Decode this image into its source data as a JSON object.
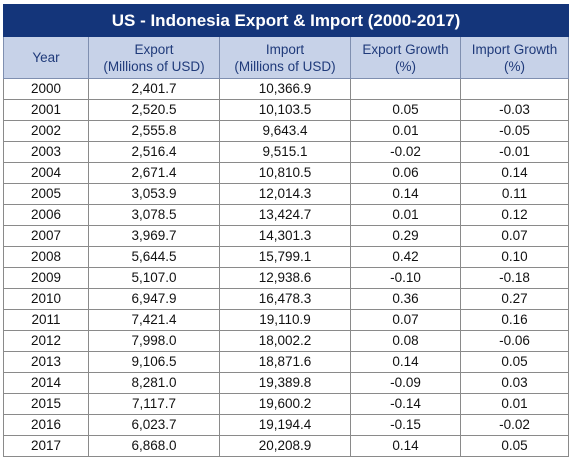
{
  "title": "US - Indonesia Export & Import (2000-2017)",
  "headers": {
    "year": "Year",
    "export_line1": "Export",
    "export_line2": "(Millions of USD)",
    "import_line1": "Import",
    "import_line2": "(Millions of USD)",
    "export_growth_line1": "Export Growth",
    "export_growth_line2": "(%)",
    "import_growth_line1": "Import Growth",
    "import_growth_line2": "(%)"
  },
  "rows": [
    {
      "year": "2000",
      "export": "2,401.7",
      "import": "10,366.9",
      "export_growth": "",
      "import_growth": ""
    },
    {
      "year": "2001",
      "export": "2,520.5",
      "import": "10,103.5",
      "export_growth": "0.05",
      "import_growth": "-0.03"
    },
    {
      "year": "2002",
      "export": "2,555.8",
      "import": "9,643.4",
      "export_growth": "0.01",
      "import_growth": "-0.05"
    },
    {
      "year": "2003",
      "export": "2,516.4",
      "import": "9,515.1",
      "export_growth": "-0.02",
      "import_growth": "-0.01"
    },
    {
      "year": "2004",
      "export": "2,671.4",
      "import": "10,810.5",
      "export_growth": "0.06",
      "import_growth": "0.14"
    },
    {
      "year": "2005",
      "export": "3,053.9",
      "import": "12,014.3",
      "export_growth": "0.14",
      "import_growth": "0.11"
    },
    {
      "year": "2006",
      "export": "3,078.5",
      "import": "13,424.7",
      "export_growth": "0.01",
      "import_growth": "0.12"
    },
    {
      "year": "2007",
      "export": "3,969.7",
      "import": "14,301.3",
      "export_growth": "0.29",
      "import_growth": "0.07"
    },
    {
      "year": "2008",
      "export": "5,644.5",
      "import": "15,799.1",
      "export_growth": "0.42",
      "import_growth": "0.10"
    },
    {
      "year": "2009",
      "export": "5,107.0",
      "import": "12,938.6",
      "export_growth": "-0.10",
      "import_growth": "-0.18"
    },
    {
      "year": "2010",
      "export": "6,947.9",
      "import": "16,478.3",
      "export_growth": "0.36",
      "import_growth": "0.27"
    },
    {
      "year": "2011",
      "export": "7,421.4",
      "import": "19,110.9",
      "export_growth": "0.07",
      "import_growth": "0.16"
    },
    {
      "year": "2012",
      "export": "7,998.0",
      "import": "18,002.2",
      "export_growth": "0.08",
      "import_growth": "-0.06"
    },
    {
      "year": "2013",
      "export": "9,106.5",
      "import": "18,871.6",
      "export_growth": "0.14",
      "import_growth": "0.05"
    },
    {
      "year": "2014",
      "export": "8,281.0",
      "import": "19,389.8",
      "export_growth": "-0.09",
      "import_growth": "0.03"
    },
    {
      "year": "2015",
      "export": "7,117.7",
      "import": "19,600.2",
      "export_growth": "-0.14",
      "import_growth": "0.01"
    },
    {
      "year": "2016",
      "export": "6,023.7",
      "import": "19,194.4",
      "export_growth": "-0.15",
      "import_growth": "-0.02"
    },
    {
      "year": "2017",
      "export": "6,868.0",
      "import": "20,208.9",
      "export_growth": "0.14",
      "import_growth": "0.05"
    }
  ],
  "colors": {
    "title_bg": "#14357a",
    "title_text": "#ffffff",
    "header_bg": "#c7d2e8",
    "header_text": "#1f3a7a"
  }
}
